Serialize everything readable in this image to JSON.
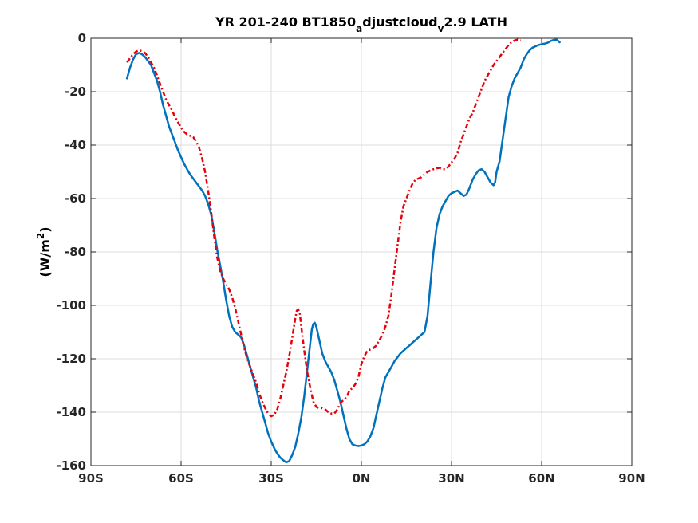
{
  "chart_data": {
    "type": "line",
    "title": {
      "part1": "YR 201-240 BT1850",
      "sub1": "a",
      "part2": "djustcloud",
      "sub2": "v",
      "part3": "2.9 LATH"
    },
    "ylabel": {
      "prefix": "(W/m",
      "sup": "2",
      "suffix": ")"
    },
    "xlabel": "",
    "xlim": [
      -90,
      90
    ],
    "ylim": [
      -160,
      0
    ],
    "xticks": [
      -90,
      -60,
      -30,
      0,
      30,
      60,
      90
    ],
    "xtick_labels": [
      "90S",
      "60S",
      "30S",
      "0N",
      "30N",
      "60N",
      "90N"
    ],
    "yticks": [
      -160,
      -140,
      -120,
      -100,
      -80,
      -60,
      -40,
      -20,
      0
    ],
    "ytick_labels": [
      "-160",
      "-140",
      "-120",
      "-100",
      "-80",
      "-60",
      "-40",
      "-20",
      "0"
    ],
    "grid": true,
    "series": [
      {
        "color": "#0072bd",
        "style": "solid",
        "points": [
          [
            -78,
            -15
          ],
          [
            -77,
            -11
          ],
          [
            -76,
            -8
          ],
          [
            -75,
            -6
          ],
          [
            -74,
            -5.5
          ],
          [
            -73,
            -6
          ],
          [
            -72,
            -7
          ],
          [
            -71,
            -8.5
          ],
          [
            -70,
            -10
          ],
          [
            -69,
            -13
          ],
          [
            -68,
            -16
          ],
          [
            -67,
            -20
          ],
          [
            -66,
            -25
          ],
          [
            -65,
            -29
          ],
          [
            -64,
            -33
          ],
          [
            -63,
            -36
          ],
          [
            -62,
            -39
          ],
          [
            -61,
            -42
          ],
          [
            -60,
            -44.5
          ],
          [
            -59,
            -47
          ],
          [
            -58,
            -49
          ],
          [
            -57,
            -51
          ],
          [
            -56,
            -52.5
          ],
          [
            -55,
            -54
          ],
          [
            -54,
            -55.5
          ],
          [
            -53,
            -57
          ],
          [
            -52,
            -59
          ],
          [
            -51,
            -62
          ],
          [
            -50,
            -66
          ],
          [
            -49,
            -72
          ],
          [
            -48,
            -79
          ],
          [
            -47,
            -85
          ],
          [
            -46,
            -91
          ],
          [
            -45,
            -98
          ],
          [
            -44,
            -104
          ],
          [
            -43,
            -108
          ],
          [
            -42,
            -110
          ],
          [
            -41,
            -111
          ],
          [
            -40,
            -112
          ],
          [
            -39,
            -115
          ],
          [
            -38,
            -119
          ],
          [
            -37,
            -123
          ],
          [
            -36,
            -127
          ],
          [
            -35,
            -131
          ],
          [
            -34,
            -136
          ],
          [
            -33,
            -140
          ],
          [
            -32,
            -144
          ],
          [
            -31,
            -148
          ],
          [
            -30,
            -151
          ],
          [
            -29,
            -153.5
          ],
          [
            -28,
            -155.5
          ],
          [
            -27,
            -157
          ],
          [
            -26,
            -158
          ],
          [
            -25,
            -158.8
          ],
          [
            -24,
            -158.3
          ],
          [
            -23,
            -156
          ],
          [
            -22,
            -153
          ],
          [
            -21,
            -148
          ],
          [
            -20,
            -142
          ],
          [
            -19,
            -134
          ],
          [
            -18,
            -124
          ],
          [
            -17,
            -114
          ],
          [
            -16.5,
            -109
          ],
          [
            -16,
            -107
          ],
          [
            -15.5,
            -106.5
          ],
          [
            -15,
            -108
          ],
          [
            -14,
            -113
          ],
          [
            -13,
            -118
          ],
          [
            -12,
            -121
          ],
          [
            -11,
            -123
          ],
          [
            -10,
            -125
          ],
          [
            -9,
            -128
          ],
          [
            -8,
            -132
          ],
          [
            -7,
            -136
          ],
          [
            -6,
            -141
          ],
          [
            -5,
            -146
          ],
          [
            -4,
            -150
          ],
          [
            -3,
            -152
          ],
          [
            -2,
            -152.5
          ],
          [
            -1,
            -152.7
          ],
          [
            0,
            -152.5
          ],
          [
            1,
            -152
          ],
          [
            2,
            -151
          ],
          [
            3,
            -149
          ],
          [
            4,
            -146
          ],
          [
            5,
            -141
          ],
          [
            6,
            -136
          ],
          [
            7,
            -131
          ],
          [
            8,
            -127
          ],
          [
            9,
            -125
          ],
          [
            10,
            -123
          ],
          [
            11,
            -121
          ],
          [
            12,
            -119.5
          ],
          [
            13,
            -118
          ],
          [
            14,
            -117
          ],
          [
            15,
            -116
          ],
          [
            16,
            -115
          ],
          [
            17,
            -114
          ],
          [
            18,
            -113
          ],
          [
            19,
            -112
          ],
          [
            20,
            -111
          ],
          [
            21,
            -110
          ],
          [
            22,
            -104
          ],
          [
            23,
            -92
          ],
          [
            24,
            -80
          ],
          [
            25,
            -71
          ],
          [
            26,
            -66
          ],
          [
            27,
            -63
          ],
          [
            28,
            -61
          ],
          [
            29,
            -59
          ],
          [
            30,
            -58
          ],
          [
            31,
            -57.5
          ],
          [
            32,
            -57
          ],
          [
            33,
            -58
          ],
          [
            34,
            -59
          ],
          [
            35,
            -58.5
          ],
          [
            36,
            -56
          ],
          [
            37,
            -53
          ],
          [
            38,
            -51
          ],
          [
            39,
            -49.5
          ],
          [
            40,
            -49
          ],
          [
            41,
            -50
          ],
          [
            42,
            -52
          ],
          [
            43,
            -54
          ],
          [
            44,
            -55
          ],
          [
            44.5,
            -54
          ],
          [
            45,
            -50
          ],
          [
            46,
            -46
          ],
          [
            47,
            -38
          ],
          [
            48,
            -30
          ],
          [
            49,
            -22
          ],
          [
            50,
            -18
          ],
          [
            51,
            -15
          ],
          [
            52,
            -13
          ],
          [
            53,
            -11
          ],
          [
            54,
            -8
          ],
          [
            55,
            -6
          ],
          [
            56,
            -4.5
          ],
          [
            57,
            -3.5
          ],
          [
            58,
            -3
          ],
          [
            59,
            -2.5
          ],
          [
            60,
            -2.2
          ],
          [
            61,
            -2
          ],
          [
            62,
            -1.7
          ],
          [
            63,
            -1
          ],
          [
            64,
            -0.6
          ],
          [
            65,
            -0.5
          ],
          [
            66,
            -1.5
          ]
        ]
      },
      {
        "color": "#e8000b",
        "style": "dashdot",
        "points": [
          [
            -78,
            -9
          ],
          [
            -77,
            -7.5
          ],
          [
            -76,
            -6
          ],
          [
            -75,
            -5
          ],
          [
            -74,
            -4.5
          ],
          [
            -73,
            -4.8
          ],
          [
            -72,
            -5.5
          ],
          [
            -71,
            -7
          ],
          [
            -70,
            -9
          ],
          [
            -69,
            -11
          ],
          [
            -68,
            -14
          ],
          [
            -67,
            -17
          ],
          [
            -66,
            -20
          ],
          [
            -65,
            -23
          ],
          [
            -64,
            -25
          ],
          [
            -63,
            -27
          ],
          [
            -62,
            -29.5
          ],
          [
            -61,
            -31.5
          ],
          [
            -60,
            -33.5
          ],
          [
            -59,
            -35
          ],
          [
            -58,
            -36
          ],
          [
            -57,
            -36.5
          ],
          [
            -56,
            -37
          ],
          [
            -55,
            -38.5
          ],
          [
            -54,
            -41
          ],
          [
            -53,
            -45
          ],
          [
            -52,
            -50
          ],
          [
            -51,
            -57
          ],
          [
            -50,
            -65
          ],
          [
            -49,
            -74
          ],
          [
            -48,
            -82
          ],
          [
            -47,
            -87
          ],
          [
            -46,
            -90
          ],
          [
            -45,
            -92
          ],
          [
            -44,
            -94
          ],
          [
            -43,
            -97
          ],
          [
            -42,
            -101
          ],
          [
            -41,
            -106
          ],
          [
            -40,
            -111
          ],
          [
            -39,
            -116
          ],
          [
            -38,
            -120
          ],
          [
            -37,
            -123
          ],
          [
            -36,
            -126
          ],
          [
            -35,
            -129
          ],
          [
            -34,
            -133
          ],
          [
            -33,
            -136
          ],
          [
            -32,
            -138.5
          ],
          [
            -31,
            -140.5
          ],
          [
            -30,
            -141.5
          ],
          [
            -29,
            -141
          ],
          [
            -28,
            -139
          ],
          [
            -27,
            -135
          ],
          [
            -26,
            -130
          ],
          [
            -25,
            -125
          ],
          [
            -24,
            -119
          ],
          [
            -23,
            -112
          ],
          [
            -22,
            -105
          ],
          [
            -21.5,
            -102
          ],
          [
            -21,
            -101.5
          ],
          [
            -20.5,
            -103
          ],
          [
            -20,
            -108
          ],
          [
            -19,
            -117
          ],
          [
            -18,
            -125
          ],
          [
            -17,
            -131
          ],
          [
            -16,
            -136
          ],
          [
            -15,
            -138
          ],
          [
            -14,
            -138.5
          ],
          [
            -13,
            -138.5
          ],
          [
            -12,
            -139
          ],
          [
            -11,
            -140
          ],
          [
            -10,
            -140.5
          ],
          [
            -9,
            -140.5
          ],
          [
            -8,
            -139
          ],
          [
            -7,
            -136.5
          ],
          [
            -6,
            -135.5
          ],
          [
            -5,
            -134.5
          ],
          [
            -4,
            -132
          ],
          [
            -3,
            -131
          ],
          [
            -2,
            -129.5
          ],
          [
            -1,
            -127
          ],
          [
            0,
            -122
          ],
          [
            1,
            -119
          ],
          [
            2,
            -117
          ],
          [
            3,
            -116.5
          ],
          [
            4,
            -116
          ],
          [
            5,
            -115
          ],
          [
            6,
            -113
          ],
          [
            7,
            -111
          ],
          [
            8,
            -108
          ],
          [
            9,
            -104
          ],
          [
            10,
            -96
          ],
          [
            11,
            -87
          ],
          [
            12,
            -78
          ],
          [
            13,
            -69
          ],
          [
            14,
            -63
          ],
          [
            15,
            -60
          ],
          [
            16,
            -57
          ],
          [
            17,
            -54.5
          ],
          [
            18,
            -53
          ],
          [
            19,
            -52.5
          ],
          [
            20,
            -52
          ],
          [
            21,
            -51
          ],
          [
            22,
            -50
          ],
          [
            23,
            -49.5
          ],
          [
            24,
            -49
          ],
          [
            25,
            -48.7
          ],
          [
            26,
            -48.5
          ],
          [
            27,
            -49
          ],
          [
            28,
            -49
          ],
          [
            29,
            -48
          ],
          [
            30,
            -46.5
          ],
          [
            31,
            -45
          ],
          [
            32,
            -43
          ],
          [
            33,
            -39
          ],
          [
            34,
            -36
          ],
          [
            35,
            -33
          ],
          [
            36,
            -30
          ],
          [
            37,
            -28
          ],
          [
            38,
            -25
          ],
          [
            39,
            -22
          ],
          [
            40,
            -19
          ],
          [
            41,
            -16
          ],
          [
            42,
            -14
          ],
          [
            43,
            -12
          ],
          [
            44,
            -10
          ],
          [
            45,
            -8.5
          ],
          [
            46,
            -7
          ],
          [
            47,
            -5.5
          ],
          [
            48,
            -4
          ],
          [
            49,
            -2.5
          ],
          [
            50,
            -1.5
          ],
          [
            51,
            -0.8
          ],
          [
            52,
            -0.5
          ],
          [
            53,
            -0.8
          ]
        ]
      }
    ]
  }
}
